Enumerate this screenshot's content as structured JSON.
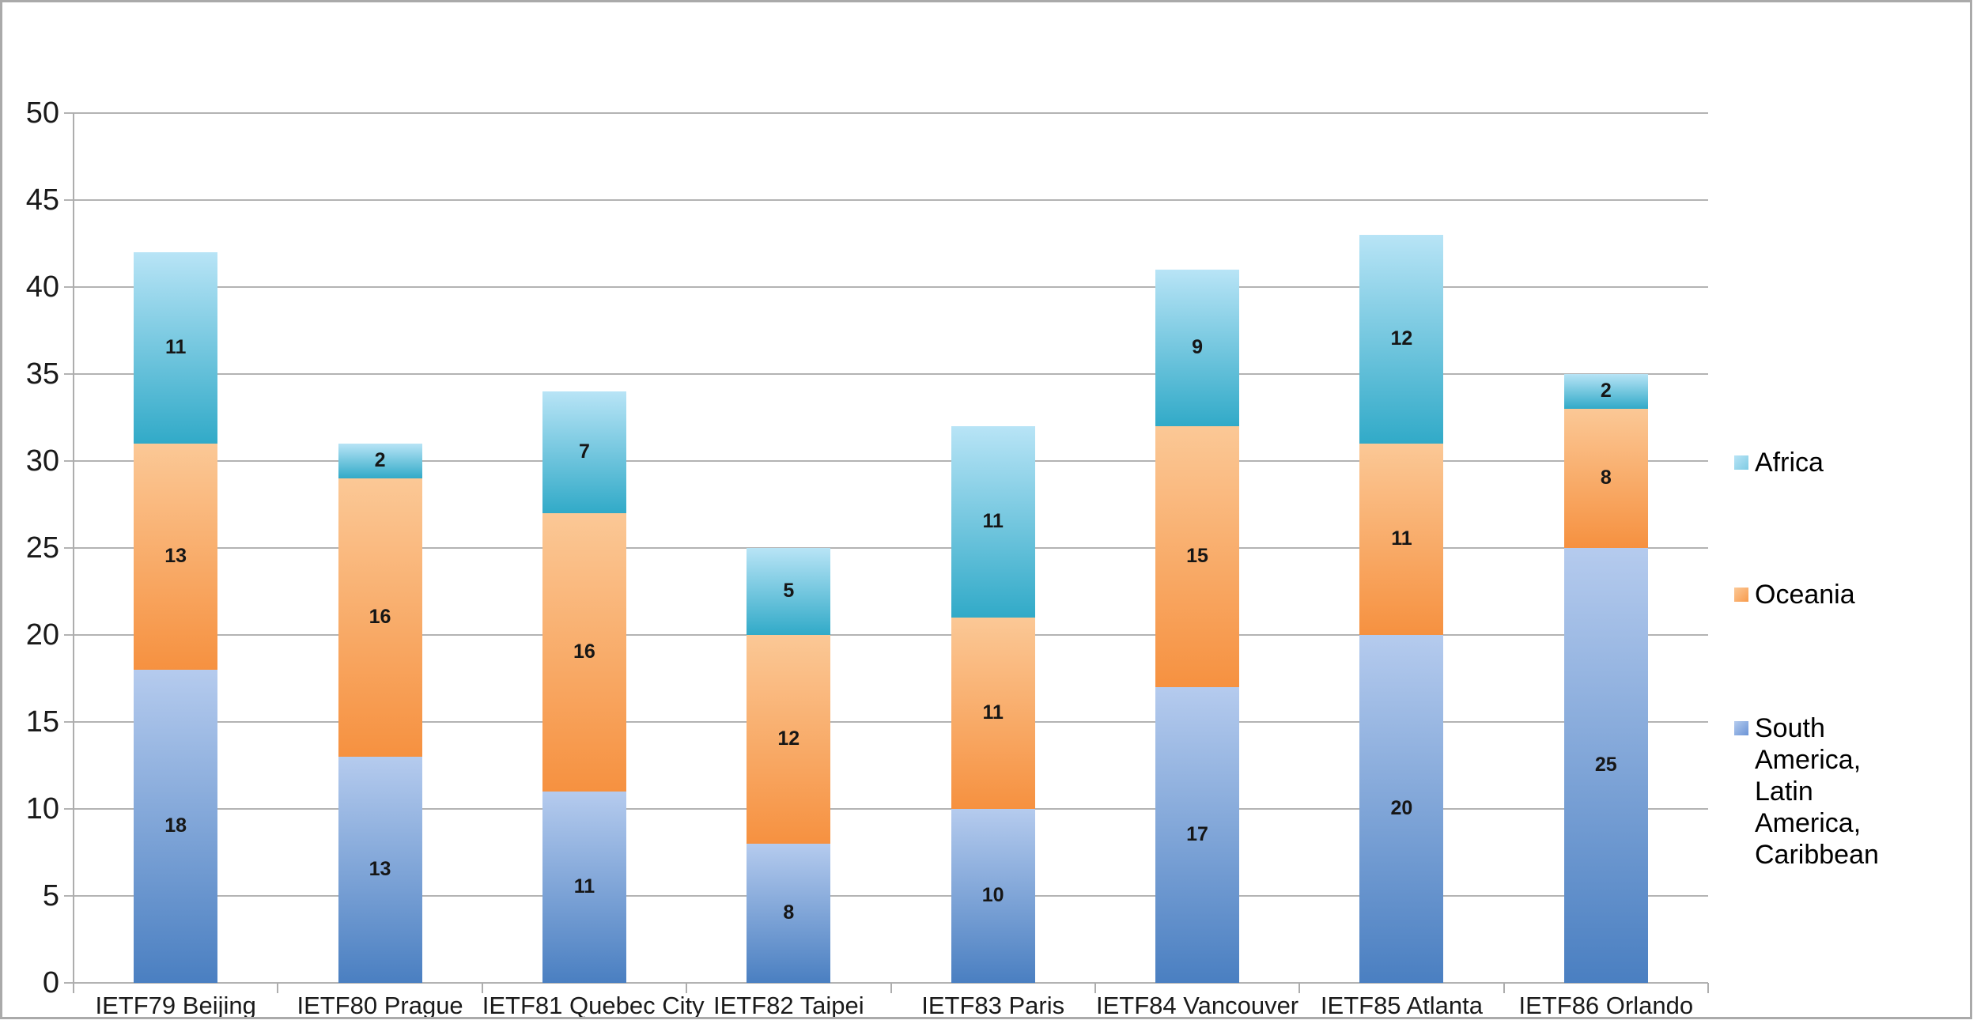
{
  "chart_data": {
    "type": "bar",
    "stacked": true,
    "title": "",
    "xlabel": "",
    "ylabel": "",
    "ylim": [
      0,
      50
    ],
    "ytick_step": 5,
    "grid": true,
    "legend_position": "right",
    "categories": [
      "IETF79 Beijing",
      "IETF80 Prague",
      "IETF81 Quebec City",
      "IETF82 Taipei",
      "IETF83 Paris",
      "IETF84 Vancouver",
      "IETF85 Atlanta",
      "IETF86 Orlando"
    ],
    "series": [
      {
        "name": "South America, Latin America, Caribbean",
        "values": [
          18,
          13,
          11,
          8,
          10,
          17,
          20,
          25
        ],
        "color_top": "#b5cbee",
        "color_bottom": "#4a7fc1",
        "swatch_color": "#6b94d6"
      },
      {
        "name": "Oceania",
        "values": [
          13,
          16,
          16,
          12,
          11,
          15,
          11,
          8
        ],
        "color_top": "#fbc896",
        "color_bottom": "#f69140",
        "swatch_color": "#f89b4d"
      },
      {
        "name": "Africa",
        "values": [
          11,
          2,
          7,
          5,
          11,
          9,
          12,
          2
        ],
        "color_top": "#b8e4f6",
        "color_bottom": "#31aac8",
        "swatch_color": "#7fcbe3"
      }
    ],
    "legend": [
      {
        "series": "Africa",
        "label": "Africa"
      },
      {
        "series": "Oceania",
        "label": "Oceania"
      },
      {
        "series": "South America, Latin America, Caribbean",
        "label": "South America,\nLatin America,\nCaribbean"
      }
    ],
    "ytick_labels": [
      "0",
      "5",
      "10",
      "15",
      "20",
      "25",
      "30",
      "35",
      "40",
      "45",
      "50"
    ]
  },
  "layout_text": {}
}
